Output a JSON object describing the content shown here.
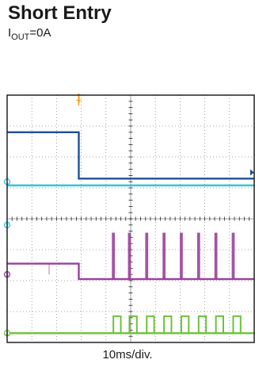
{
  "title": "Short Entry",
  "condition": {
    "symbol": "I",
    "subscript": "OUT",
    "value": "=0A"
  },
  "chart_data": {
    "type": "line",
    "title": "Short Entry",
    "xlabel": "10ms/div.",
    "divisions": {
      "x": 10,
      "y": 8
    },
    "grid": true,
    "x_range_div": [
      0,
      10
    ],
    "y_range_div": [
      0,
      8
    ],
    "trigger_marker_label": "T",
    "colors": {
      "background": "#ffffff",
      "grid": "#8a8a8a",
      "frame": "#222222",
      "ch1": "#1f4e9a",
      "ch2": "#31c4de",
      "ch3": "#9b3f9c",
      "ch4": "#6cc23a",
      "trigger": "#f19a1f"
    },
    "channel_markers": [
      {
        "label": "1",
        "name": "channel-1-marker",
        "y_div": 2.8,
        "color": "#31c4de"
      },
      {
        "label": "2",
        "name": "channel-2-marker",
        "y_div": 4.2,
        "color": "#31c4de"
      },
      {
        "label": "3",
        "name": "channel-3-marker",
        "y_div": 5.8,
        "color": "#9b3f9c"
      },
      {
        "label": "4",
        "name": "channel-4-marker",
        "y_div": 7.7,
        "color": "#6cc23a"
      }
    ],
    "series": [
      {
        "id": "ch1",
        "color": "#1f4e9a",
        "x": [
          0,
          2.9,
          2.9,
          10
        ],
        "y": [
          1.2,
          1.2,
          2.7,
          2.7
        ]
      },
      {
        "id": "ch2",
        "color": "#31c4de",
        "x": [
          0,
          10
        ],
        "y": [
          2.92,
          2.92
        ]
      },
      {
        "id": "ch3",
        "color": "#9b3f9c",
        "x": [
          0,
          2.9,
          2.9,
          10
        ],
        "y": [
          5.45,
          5.45,
          5.95,
          5.95
        ],
        "spikes": [
          {
            "x": 4.3,
            "top": 4.45,
            "w": 0.12
          },
          {
            "x": 4.95,
            "top": 4.45,
            "w": 0.12
          },
          {
            "x": 5.65,
            "top": 4.45,
            "w": 0.12
          },
          {
            "x": 6.35,
            "top": 4.45,
            "w": 0.12
          },
          {
            "x": 7.05,
            "top": 4.45,
            "w": 0.12
          },
          {
            "x": 7.75,
            "top": 4.45,
            "w": 0.12
          },
          {
            "x": 8.45,
            "top": 4.45,
            "w": 0.12
          },
          {
            "x": 9.15,
            "top": 4.45,
            "w": 0.12
          },
          {
            "x": 1.7,
            "top": 5.45,
            "w": 0.05,
            "bottom": 5.8
          }
        ]
      },
      {
        "id": "ch4",
        "color": "#6cc23a",
        "x": [
          0,
          10
        ],
        "y": [
          7.7,
          7.7
        ],
        "pulses": [
          4.3,
          4.95,
          5.65,
          6.35,
          7.05,
          7.75,
          8.45,
          9.15
        ],
        "pulse_top": 7.15,
        "pulse_width": 0.3
      }
    ]
  }
}
